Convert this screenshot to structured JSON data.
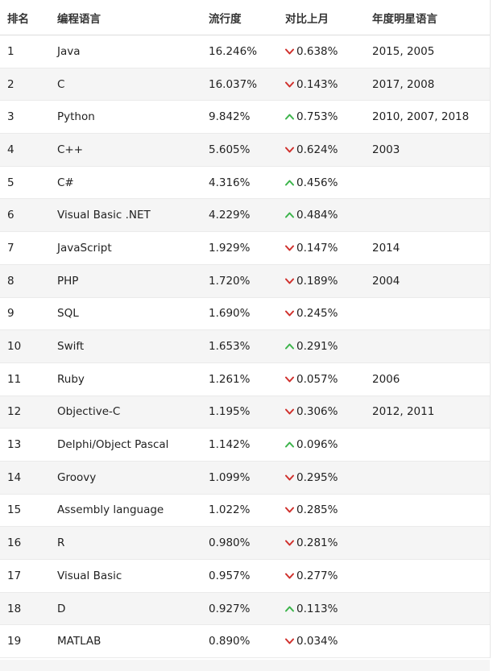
{
  "columns": {
    "rank": "排名",
    "language": "编程语言",
    "popularity": "流行度",
    "change": "对比上月",
    "star": "年度明星语言"
  },
  "colors": {
    "down": "#d0312d",
    "up": "#3cb44b"
  },
  "rows": [
    {
      "rank": "1",
      "language": "Java",
      "popularity": "16.246%",
      "direction": "down",
      "change": "0.638%",
      "star": "2015, 2005"
    },
    {
      "rank": "2",
      "language": "C",
      "popularity": "16.037%",
      "direction": "down",
      "change": "0.143%",
      "star": "2017, 2008"
    },
    {
      "rank": "3",
      "language": "Python",
      "popularity": "9.842%",
      "direction": "up",
      "change": "0.753%",
      "star": "2010, 2007, 2018"
    },
    {
      "rank": "4",
      "language": "C++",
      "popularity": "5.605%",
      "direction": "down",
      "change": "0.624%",
      "star": "2003"
    },
    {
      "rank": "5",
      "language": "C#",
      "popularity": "4.316%",
      "direction": "up",
      "change": "0.456%",
      "star": ""
    },
    {
      "rank": "6",
      "language": "Visual Basic .NET",
      "popularity": "4.229%",
      "direction": "up",
      "change": "0.484%",
      "star": ""
    },
    {
      "rank": "7",
      "language": "JavaScript",
      "popularity": "1.929%",
      "direction": "down",
      "change": "0.147%",
      "star": "2014"
    },
    {
      "rank": "8",
      "language": "PHP",
      "popularity": "1.720%",
      "direction": "down",
      "change": "0.189%",
      "star": "2004"
    },
    {
      "rank": "9",
      "language": "SQL",
      "popularity": "1.690%",
      "direction": "down",
      "change": "0.245%",
      "star": ""
    },
    {
      "rank": "10",
      "language": "Swift",
      "popularity": "1.653%",
      "direction": "up",
      "change": "0.291%",
      "star": ""
    },
    {
      "rank": "11",
      "language": "Ruby",
      "popularity": "1.261%",
      "direction": "down",
      "change": "0.057%",
      "star": "2006"
    },
    {
      "rank": "12",
      "language": "Objective-C",
      "popularity": "1.195%",
      "direction": "down",
      "change": "0.306%",
      "star": "2012, 2011"
    },
    {
      "rank": "13",
      "language": "Delphi/Object Pascal",
      "popularity": "1.142%",
      "direction": "up",
      "change": "0.096%",
      "star": ""
    },
    {
      "rank": "14",
      "language": "Groovy",
      "popularity": "1.099%",
      "direction": "down",
      "change": "0.295%",
      "star": ""
    },
    {
      "rank": "15",
      "language": "Assembly language",
      "popularity": "1.022%",
      "direction": "down",
      "change": "0.285%",
      "star": ""
    },
    {
      "rank": "16",
      "language": "R",
      "popularity": "0.980%",
      "direction": "down",
      "change": "0.281%",
      "star": ""
    },
    {
      "rank": "17",
      "language": "Visual Basic",
      "popularity": "0.957%",
      "direction": "down",
      "change": "0.277%",
      "star": ""
    },
    {
      "rank": "18",
      "language": "D",
      "popularity": "0.927%",
      "direction": "up",
      "change": "0.113%",
      "star": ""
    },
    {
      "rank": "19",
      "language": "MATLAB",
      "popularity": "0.890%",
      "direction": "down",
      "change": "0.034%",
      "star": ""
    }
  ]
}
